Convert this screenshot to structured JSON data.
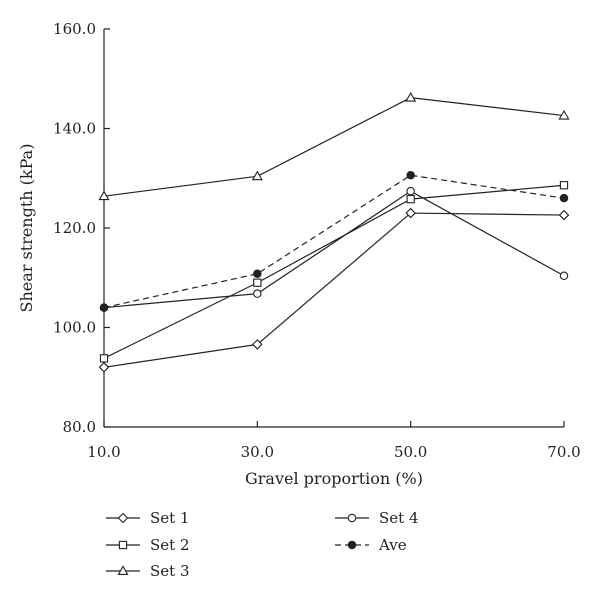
{
  "chart_data": {
    "type": "line",
    "title": "",
    "xlabel": "Gravel proportion (%)",
    "ylabel": "Shear strength (kPa)",
    "x": [
      10.0,
      30.0,
      50.0,
      70.0
    ],
    "x_tick_labels": [
      "10.0",
      "30.0",
      "50.0",
      "70.0"
    ],
    "xlim": [
      10.0,
      70.0
    ],
    "ylim": [
      80.0,
      160.0
    ],
    "y_ticks": [
      80.0,
      100.0,
      120.0,
      140.0,
      160.0
    ],
    "y_tick_labels": [
      "80.0",
      "100.0",
      "120.0",
      "140.0",
      "160.0"
    ],
    "grid": false,
    "legend_placement": "bottom",
    "series": [
      {
        "name": "Set 1",
        "marker": "diamond-open",
        "line": "solid",
        "values": [
          92.0,
          96.6,
          123.0,
          122.6
        ]
      },
      {
        "name": "Set 2",
        "marker": "square-open",
        "line": "solid",
        "values": [
          93.8,
          109.0,
          125.8,
          128.6
        ]
      },
      {
        "name": "Set 3",
        "marker": "triangle-open",
        "line": "solid",
        "values": [
          126.4,
          130.4,
          146.2,
          142.6
        ]
      },
      {
        "name": "Set 4",
        "marker": "circle-open",
        "line": "solid",
        "values": [
          104.0,
          106.8,
          127.4,
          110.4
        ]
      },
      {
        "name": "Ave",
        "marker": "circle-filled",
        "line": "dashed",
        "values": [
          104.0,
          110.8,
          130.6,
          126.0
        ]
      }
    ],
    "colors": {
      "line": "#222222",
      "marker_fill_open": "#ffffff",
      "marker_fill_filled": "#222222"
    }
  }
}
